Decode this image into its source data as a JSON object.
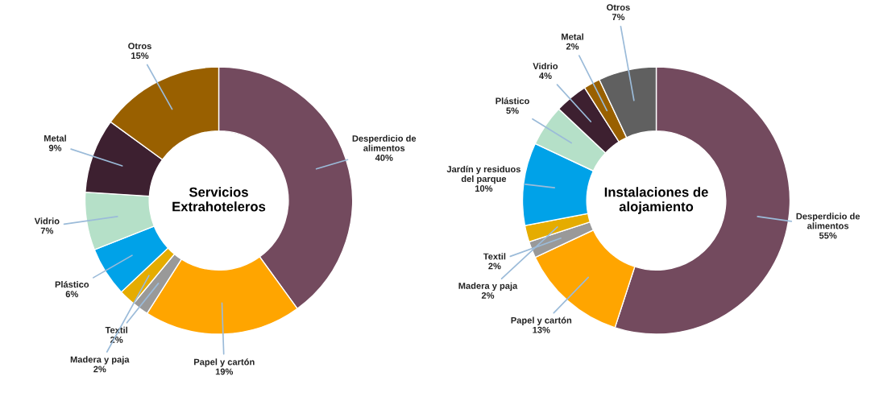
{
  "chart_data": [
    {
      "type": "donut",
      "title": "Servicios\nExtrahoteleros",
      "categories": [
        "Desperdicio de\nalimentos",
        "Papel y cartón",
        "Textil",
        "Madera y paja",
        "Plástico",
        "Vidrio",
        "Metal",
        "Otros"
      ],
      "values": [
        40,
        19,
        2,
        2,
        6,
        7,
        9,
        15
      ],
      "value_labels": [
        "40%",
        "19%",
        "2%",
        "2%",
        "6%",
        "7%",
        "9%",
        "15%"
      ],
      "colors": [
        "#734a5e",
        "#ffa500",
        "#999999",
        "#e5ac00",
        "#00a2e8",
        "#b5e0c8",
        "#3d2030",
        "#996000"
      ],
      "legend": false
    },
    {
      "type": "donut",
      "title": "Instalaciones de\nalojamiento",
      "categories": [
        "Desperdicio de\nalimentos",
        "Papel y cartón",
        "Textil",
        "Madera y paja",
        "Jardín y residuos\ndel parque",
        "Plástico",
        "Vidrio",
        "Metal",
        "Otros"
      ],
      "values": [
        55,
        13,
        2,
        2,
        10,
        5,
        4,
        2,
        7
      ],
      "value_labels": [
        "55%",
        "13%",
        "2%",
        "2%",
        "10%",
        "5%",
        "4%",
        "2%",
        "7%"
      ],
      "colors": [
        "#734a5e",
        "#ffa500",
        "#999999",
        "#e5ac00",
        "#00a2e8",
        "#b5e0c8",
        "#3d2030",
        "#996000",
        "#606060"
      ],
      "legend": false
    }
  ]
}
